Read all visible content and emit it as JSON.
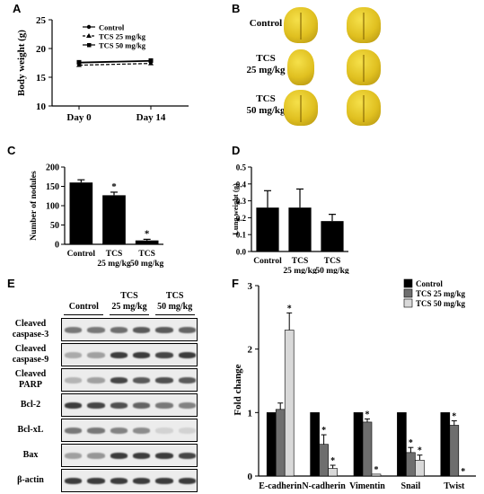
{
  "panels": {
    "a": "A",
    "b": "B",
    "c": "C",
    "d": "D",
    "e": "E",
    "f": "F"
  },
  "colors": {
    "bar_black": "#000000",
    "bar_gray": "#6e6e6e",
    "bar_light": "#d9d9d9",
    "lung_yellow": "#e0c020",
    "lung_dark": "#b09010"
  },
  "chart_data": [
    {
      "id": "A",
      "type": "line",
      "ylabel": "Body weight (g)",
      "categories": [
        "Day 0",
        "Day 14"
      ],
      "yticks": [
        "10",
        "15",
        "20",
        "25"
      ],
      "ylim": [
        10,
        25
      ],
      "series": [
        {
          "name": "Control",
          "values": [
            17.5,
            17.8
          ],
          "marker": "dot",
          "dash": "solid"
        },
        {
          "name": "TCS 25 mg/kg",
          "values": [
            17.1,
            17.4
          ],
          "marker": "triangle",
          "dash": "dashed"
        },
        {
          "name": "TCS 50 mg/kg",
          "values": [
            17.6,
            17.9
          ],
          "marker": "square",
          "dash": "solid"
        }
      ]
    },
    {
      "id": "C",
      "type": "bar",
      "ylabel": "Number of nodules",
      "categories": [
        [
          "Control"
        ],
        [
          "TCS",
          "25 mg/kg"
        ],
        [
          "TCS",
          "50 mg/kg"
        ]
      ],
      "values": [
        160,
        127,
        10
      ],
      "errors": [
        7,
        8,
        3
      ],
      "significant": [
        "",
        "*",
        "*"
      ],
      "yticks": [
        "0",
        "50",
        "100",
        "150",
        "200"
      ],
      "ylim": [
        0,
        200
      ]
    },
    {
      "id": "D",
      "type": "bar",
      "ylabel": "Lung weight (g)",
      "categories": [
        [
          "Control"
        ],
        [
          "TCS",
          "25 mg/kg"
        ],
        [
          "TCS",
          "50 mg/kg"
        ]
      ],
      "values": [
        0.26,
        0.26,
        0.18
      ],
      "errors": [
        0.1,
        0.11,
        0.04
      ],
      "yticks": [
        "0.0",
        "0.1",
        "0.2",
        "0.3",
        "0.4",
        "0.5"
      ],
      "ylim": [
        0,
        0.5
      ]
    },
    {
      "id": "F",
      "type": "bar",
      "ylabel": "Fold change",
      "categories": [
        "E-cadherin",
        "N-cadherin",
        "Vimentin",
        "Snail",
        "Twist"
      ],
      "yticks": [
        "0",
        "1",
        "2",
        "3"
      ],
      "ylim": [
        0,
        3
      ],
      "series": [
        {
          "name": "Control",
          "values": [
            1,
            1,
            1,
            1,
            1
          ],
          "errors": [
            0,
            0,
            0,
            0,
            0
          ],
          "sig": [
            "",
            "",
            "",
            "",
            ""
          ]
        },
        {
          "name": "TCS 25 mg/kg",
          "values": [
            1.05,
            0.5,
            0.85,
            0.37,
            0.8
          ],
          "errors": [
            0.1,
            0.15,
            0.05,
            0.08,
            0.07
          ],
          "sig": [
            "",
            "*",
            "*",
            "*",
            "*"
          ]
        },
        {
          "name": "TCS 50 mg/kg",
          "values": [
            2.3,
            0.12,
            0.03,
            0.25,
            0.0
          ],
          "errors": [
            0.27,
            0.05,
            0.0,
            0.08,
            0.0
          ],
          "sig": [
            "*",
            "*",
            "*",
            "*",
            "*"
          ]
        }
      ]
    }
  ],
  "lungs": {
    "rows": [
      {
        "label": [
          "Control"
        ]
      },
      {
        "label": [
          "TCS",
          "25 mg/kg"
        ]
      },
      {
        "label": [
          "TCS",
          "50 mg/kg"
        ]
      }
    ]
  },
  "western": {
    "groups": [
      {
        "label": [
          "Control"
        ]
      },
      {
        "label": [
          "TCS",
          "25 mg/kg"
        ]
      },
      {
        "label": [
          "TCS",
          "50 mg/kg"
        ]
      }
    ],
    "rows": [
      {
        "label": [
          "Cleaved",
          "caspase-3"
        ],
        "intensity": [
          0.55,
          0.55,
          0.6,
          0.7,
          0.7,
          0.65
        ]
      },
      {
        "label": [
          "Cleaved",
          "caspase-9"
        ],
        "intensity": [
          0.3,
          0.35,
          0.85,
          0.85,
          0.8,
          0.85
        ]
      },
      {
        "label": [
          "Cleaved",
          "PARP"
        ],
        "intensity": [
          0.25,
          0.35,
          0.8,
          0.7,
          0.75,
          0.7
        ]
      },
      {
        "label": [
          "Bcl-2"
        ],
        "intensity": [
          0.85,
          0.8,
          0.75,
          0.65,
          0.55,
          0.5
        ]
      },
      {
        "label": [
          "Bcl-xL"
        ],
        "intensity": [
          0.55,
          0.55,
          0.5,
          0.45,
          0.1,
          0.1
        ]
      },
      {
        "label": [
          "Bax"
        ],
        "intensity": [
          0.35,
          0.4,
          0.85,
          0.85,
          0.85,
          0.8
        ]
      },
      {
        "label": [
          "β-actin"
        ],
        "intensity": [
          0.85,
          0.85,
          0.85,
          0.85,
          0.85,
          0.85
        ]
      }
    ]
  }
}
